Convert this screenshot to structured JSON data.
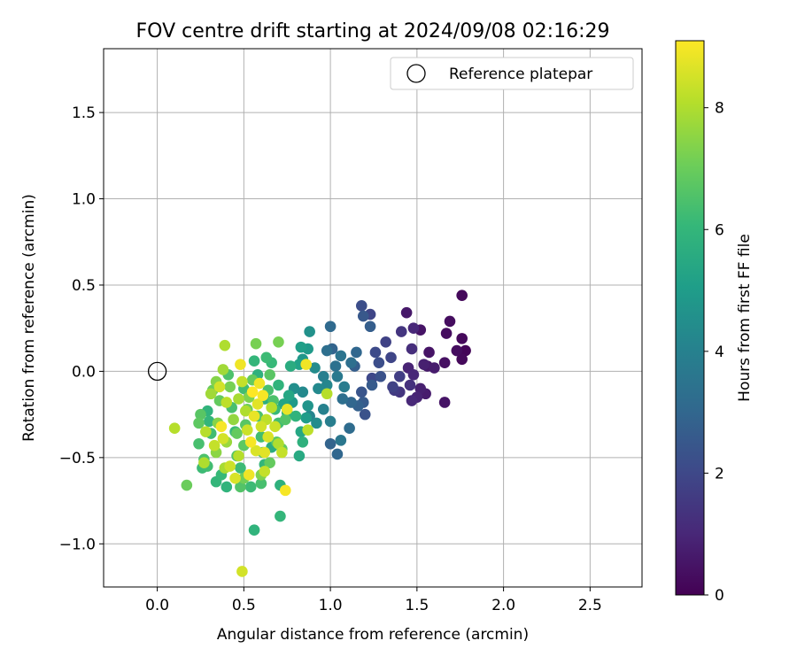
{
  "chart_data": {
    "type": "scatter",
    "title": "FOV centre drift starting at 2024/09/08 02:16:29",
    "xlabel": "Angular distance from reference (arcmin)",
    "ylabel": "Rotation from reference (arcmin)",
    "xlim": [
      -0.31,
      2.8
    ],
    "ylim": [
      -1.25,
      1.87
    ],
    "xticks": [
      0.0,
      0.5,
      1.0,
      1.5,
      2.0,
      2.5
    ],
    "xtick_labels": [
      "0.0",
      "0.5",
      "1.0",
      "1.5",
      "2.0",
      "2.5"
    ],
    "yticks": [
      -1.0,
      -0.5,
      0.0,
      0.5,
      1.0,
      1.5
    ],
    "ytick_labels": [
      "−1.0",
      "−0.5",
      "0.0",
      "0.5",
      "1.0",
      "1.5"
    ],
    "grid": true,
    "legend": {
      "placement": "top-right",
      "entries": [
        {
          "label": "Reference platepar",
          "marker": "open-circle"
        }
      ]
    },
    "reference_point": {
      "x": 0.0,
      "y": 0.0
    },
    "colorbar": {
      "label": "Hours from first FF file",
      "colormap": "viridis",
      "range": [
        0,
        9.1
      ],
      "ticks": [
        0,
        2,
        4,
        6,
        8
      ],
      "tick_labels": [
        "0",
        "2",
        "4",
        "6",
        "8"
      ]
    },
    "colormap_stops": [
      "#440154",
      "#482878",
      "#3e4989",
      "#31688e",
      "#26828e",
      "#1f9e89",
      "#35b779",
      "#6ece58",
      "#b5de2b",
      "#fde725"
    ],
    "points": [
      {
        "x": 1.76,
        "y": 0.44,
        "h": 0.2
      },
      {
        "x": 1.52,
        "y": 0.24,
        "h": 0.5
      },
      {
        "x": 1.69,
        "y": 0.29,
        "h": 0.3
      },
      {
        "x": 1.76,
        "y": 0.19,
        "h": 0.2
      },
      {
        "x": 1.78,
        "y": 0.12,
        "h": 0.1
      },
      {
        "x": 1.76,
        "y": 0.07,
        "h": 0.2
      },
      {
        "x": 1.73,
        "y": 0.12,
        "h": 0.3
      },
      {
        "x": 1.66,
        "y": 0.05,
        "h": 0.4
      },
      {
        "x": 1.66,
        "y": -0.18,
        "h": 0.5
      },
      {
        "x": 1.67,
        "y": 0.22,
        "h": 0.3
      },
      {
        "x": 1.56,
        "y": 0.03,
        "h": 0.6
      },
      {
        "x": 1.6,
        "y": 0.02,
        "h": 0.7
      },
      {
        "x": 1.57,
        "y": 0.11,
        "h": 0.5
      },
      {
        "x": 1.54,
        "y": 0.04,
        "h": 0.8
      },
      {
        "x": 1.48,
        "y": 0.25,
        "h": 1.0
      },
      {
        "x": 1.44,
        "y": 0.34,
        "h": 0.6
      },
      {
        "x": 1.41,
        "y": 0.23,
        "h": 1.4
      },
      {
        "x": 1.47,
        "y": 0.13,
        "h": 1.2
      },
      {
        "x": 1.45,
        "y": 0.02,
        "h": 0.9
      },
      {
        "x": 1.48,
        "y": -0.02,
        "h": 1.0
      },
      {
        "x": 1.46,
        "y": -0.08,
        "h": 1.3
      },
      {
        "x": 1.52,
        "y": -0.1,
        "h": 0.8
      },
      {
        "x": 1.55,
        "y": -0.13,
        "h": 0.7
      },
      {
        "x": 1.47,
        "y": -0.17,
        "h": 1.0
      },
      {
        "x": 1.5,
        "y": -0.15,
        "h": 0.9
      },
      {
        "x": 1.4,
        "y": -0.12,
        "h": 1.4
      },
      {
        "x": 1.37,
        "y": -0.11,
        "h": 1.6
      },
      {
        "x": 1.36,
        "y": -0.09,
        "h": 1.8
      },
      {
        "x": 1.4,
        "y": -0.03,
        "h": 1.7
      },
      {
        "x": 1.35,
        "y": 0.08,
        "h": 1.9
      },
      {
        "x": 1.32,
        "y": 0.17,
        "h": 1.8
      },
      {
        "x": 1.26,
        "y": 0.11,
        "h": 2.1
      },
      {
        "x": 1.23,
        "y": 0.33,
        "h": 1.9
      },
      {
        "x": 1.18,
        "y": 0.38,
        "h": 2.2
      },
      {
        "x": 1.19,
        "y": 0.32,
        "h": 2.5
      },
      {
        "x": 1.23,
        "y": 0.26,
        "h": 2.7
      },
      {
        "x": 1.28,
        "y": 0.05,
        "h": 2.2
      },
      {
        "x": 1.24,
        "y": -0.04,
        "h": 2.0
      },
      {
        "x": 1.29,
        "y": -0.03,
        "h": 2.3
      },
      {
        "x": 1.24,
        "y": -0.08,
        "h": 2.6
      },
      {
        "x": 1.18,
        "y": -0.12,
        "h": 2.4
      },
      {
        "x": 1.19,
        "y": -0.18,
        "h": 2.6
      },
      {
        "x": 1.2,
        "y": -0.25,
        "h": 2.3
      },
      {
        "x": 1.16,
        "y": -0.2,
        "h": 2.8
      },
      {
        "x": 1.12,
        "y": -0.18,
        "h": 3.0
      },
      {
        "x": 1.14,
        "y": 0.03,
        "h": 2.7
      },
      {
        "x": 1.15,
        "y": 0.11,
        "h": 3.0
      },
      {
        "x": 1.12,
        "y": 0.05,
        "h": 3.3
      },
      {
        "x": 1.0,
        "y": 0.26,
        "h": 3.1
      },
      {
        "x": 1.01,
        "y": 0.13,
        "h": 2.9
      },
      {
        "x": 0.98,
        "y": 0.12,
        "h": 3.3
      },
      {
        "x": 1.06,
        "y": 0.09,
        "h": 3.5
      },
      {
        "x": 1.03,
        "y": 0.03,
        "h": 3.4
      },
      {
        "x": 1.04,
        "y": -0.03,
        "h": 3.7
      },
      {
        "x": 1.07,
        "y": -0.16,
        "h": 3.3
      },
      {
        "x": 1.08,
        "y": -0.09,
        "h": 3.8
      },
      {
        "x": 1.11,
        "y": -0.33,
        "h": 3.2
      },
      {
        "x": 1.06,
        "y": -0.4,
        "h": 3.6
      },
      {
        "x": 1.0,
        "y": -0.42,
        "h": 2.9
      },
      {
        "x": 1.04,
        "y": -0.48,
        "h": 3.0
      },
      {
        "x": 1.0,
        "y": -0.29,
        "h": 3.9
      },
      {
        "x": 0.96,
        "y": -0.22,
        "h": 4.0
      },
      {
        "x": 0.98,
        "y": -0.08,
        "h": 4.2
      },
      {
        "x": 0.93,
        "y": -0.1,
        "h": 4.3
      },
      {
        "x": 0.96,
        "y": -0.03,
        "h": 3.9
      },
      {
        "x": 0.91,
        "y": 0.02,
        "h": 4.4
      },
      {
        "x": 0.88,
        "y": 0.23,
        "h": 4.6
      },
      {
        "x": 0.87,
        "y": 0.13,
        "h": 4.9
      },
      {
        "x": 0.83,
        "y": 0.14,
        "h": 5.1
      },
      {
        "x": 0.84,
        "y": 0.07,
        "h": 4.8
      },
      {
        "x": 0.82,
        "y": 0.04,
        "h": 5.2
      },
      {
        "x": 0.77,
        "y": 0.03,
        "h": 5.6
      },
      {
        "x": 0.79,
        "y": -0.1,
        "h": 4.5
      },
      {
        "x": 0.84,
        "y": -0.12,
        "h": 4.3
      },
      {
        "x": 0.87,
        "y": -0.2,
        "h": 4.7
      },
      {
        "x": 0.86,
        "y": -0.27,
        "h": 5.0
      },
      {
        "x": 0.83,
        "y": -0.35,
        "h": 5.4
      },
      {
        "x": 0.84,
        "y": -0.41,
        "h": 5.8
      },
      {
        "x": 0.82,
        "y": -0.49,
        "h": 5.5
      },
      {
        "x": 0.92,
        "y": -0.3,
        "h": 4.4
      },
      {
        "x": 0.88,
        "y": -0.26,
        "h": 4.1
      },
      {
        "x": 0.78,
        "y": -0.18,
        "h": 4.9
      },
      {
        "x": 0.73,
        "y": -0.19,
        "h": 5.3
      },
      {
        "x": 0.75,
        "y": -0.24,
        "h": 5.7
      },
      {
        "x": 0.7,
        "y": -0.08,
        "h": 5.9
      },
      {
        "x": 0.68,
        "y": -0.22,
        "h": 6.1
      },
      {
        "x": 0.7,
        "y": -0.3,
        "h": 6.3
      },
      {
        "x": 0.71,
        "y": -0.66,
        "h": 5.8
      },
      {
        "x": 0.71,
        "y": -0.84,
        "h": 6.0
      },
      {
        "x": 0.56,
        "y": -0.92,
        "h": 5.9
      },
      {
        "x": 0.54,
        "y": -0.67,
        "h": 6.2
      },
      {
        "x": 0.6,
        "y": -0.65,
        "h": 6.4
      },
      {
        "x": 0.48,
        "y": -0.67,
        "h": 6.6
      },
      {
        "x": 0.4,
        "y": -0.67,
        "h": 5.9
      },
      {
        "x": 0.34,
        "y": -0.64,
        "h": 6.0
      },
      {
        "x": 0.37,
        "y": -0.6,
        "h": 6.1
      },
      {
        "x": 0.29,
        "y": -0.55,
        "h": 6.3
      },
      {
        "x": 0.26,
        "y": -0.56,
        "h": 6.2
      },
      {
        "x": 0.27,
        "y": -0.51,
        "h": 6.5
      },
      {
        "x": 0.24,
        "y": -0.42,
        "h": 6.4
      },
      {
        "x": 0.24,
        "y": -0.3,
        "h": 6.8
      },
      {
        "x": 0.25,
        "y": -0.25,
        "h": 6.7
      },
      {
        "x": 0.17,
        "y": -0.66,
        "h": 7.0
      },
      {
        "x": 0.1,
        "y": -0.33,
        "h": 8.1
      },
      {
        "x": 0.29,
        "y": -0.23,
        "h": 5.9
      },
      {
        "x": 0.3,
        "y": -0.29,
        "h": 6.0
      },
      {
        "x": 0.31,
        "y": -0.36,
        "h": 6.3
      },
      {
        "x": 0.32,
        "y": -0.11,
        "h": 7.0
      },
      {
        "x": 0.34,
        "y": -0.06,
        "h": 7.4
      },
      {
        "x": 0.36,
        "y": -0.17,
        "h": 6.9
      },
      {
        "x": 0.38,
        "y": 0.01,
        "h": 7.8
      },
      {
        "x": 0.39,
        "y": 0.15,
        "h": 8.0
      },
      {
        "x": 0.41,
        "y": -0.02,
        "h": 6.5
      },
      {
        "x": 0.42,
        "y": -0.09,
        "h": 7.2
      },
      {
        "x": 0.43,
        "y": -0.21,
        "h": 6.4
      },
      {
        "x": 0.45,
        "y": -0.35,
        "h": 6.1
      },
      {
        "x": 0.46,
        "y": -0.49,
        "h": 6.6
      },
      {
        "x": 0.48,
        "y": -0.56,
        "h": 6.2
      },
      {
        "x": 0.5,
        "y": -0.43,
        "h": 6.8
      },
      {
        "x": 0.51,
        "y": -0.31,
        "h": 6.7
      },
      {
        "x": 0.52,
        "y": -0.22,
        "h": 7.1
      },
      {
        "x": 0.53,
        "y": -0.15,
        "h": 7.3
      },
      {
        "x": 0.55,
        "y": -0.05,
        "h": 6.9
      },
      {
        "x": 0.56,
        "y": 0.06,
        "h": 6.0
      },
      {
        "x": 0.57,
        "y": 0.16,
        "h": 7.2
      },
      {
        "x": 0.58,
        "y": -0.26,
        "h": 6.5
      },
      {
        "x": 0.6,
        "y": -0.38,
        "h": 6.3
      },
      {
        "x": 0.61,
        "y": -0.47,
        "h": 6.6
      },
      {
        "x": 0.62,
        "y": -0.54,
        "h": 6.0
      },
      {
        "x": 0.63,
        "y": 0.08,
        "h": 6.2
      },
      {
        "x": 0.64,
        "y": -0.11,
        "h": 6.4
      },
      {
        "x": 0.65,
        "y": -0.02,
        "h": 6.7
      },
      {
        "x": 0.66,
        "y": 0.05,
        "h": 6.1
      },
      {
        "x": 0.67,
        "y": -0.17,
        "h": 6.5
      },
      {
        "x": 0.69,
        "y": -0.41,
        "h": 6.8
      },
      {
        "x": 0.7,
        "y": 0.17,
        "h": 7.2
      },
      {
        "x": 0.72,
        "y": -0.45,
        "h": 6.9
      },
      {
        "x": 0.74,
        "y": -0.28,
        "h": 6.6
      },
      {
        "x": 0.5,
        "y": -0.62,
        "h": 7.1
      },
      {
        "x": 0.6,
        "y": -0.6,
        "h": 7.3
      },
      {
        "x": 0.34,
        "y": -0.47,
        "h": 7.5
      },
      {
        "x": 0.4,
        "y": -0.41,
        "h": 7.7
      },
      {
        "x": 0.44,
        "y": -0.28,
        "h": 7.6
      },
      {
        "x": 0.47,
        "y": -0.16,
        "h": 7.9
      },
      {
        "x": 0.35,
        "y": -0.3,
        "h": 7.4
      },
      {
        "x": 0.31,
        "y": -0.13,
        "h": 7.8
      },
      {
        "x": 0.28,
        "y": -0.35,
        "h": 8.1
      },
      {
        "x": 0.27,
        "y": -0.53,
        "h": 8.0
      },
      {
        "x": 0.33,
        "y": -0.43,
        "h": 8.3
      },
      {
        "x": 0.36,
        "y": -0.09,
        "h": 8.5
      },
      {
        "x": 0.4,
        "y": -0.18,
        "h": 8.2
      },
      {
        "x": 0.42,
        "y": -0.55,
        "h": 8.4
      },
      {
        "x": 0.45,
        "y": -0.62,
        "h": 8.6
      },
      {
        "x": 0.47,
        "y": -0.49,
        "h": 8.1
      },
      {
        "x": 0.49,
        "y": -0.06,
        "h": 8.3
      },
      {
        "x": 0.51,
        "y": -0.23,
        "h": 8.0
      },
      {
        "x": 0.52,
        "y": -0.34,
        "h": 8.4
      },
      {
        "x": 0.53,
        "y": -0.6,
        "h": 8.9
      },
      {
        "x": 0.54,
        "y": -0.41,
        "h": 9.0
      },
      {
        "x": 0.55,
        "y": -0.12,
        "h": 9.1
      },
      {
        "x": 0.56,
        "y": -0.26,
        "h": 8.8
      },
      {
        "x": 0.57,
        "y": -0.46,
        "h": 8.6
      },
      {
        "x": 0.58,
        "y": -0.19,
        "h": 8.7
      },
      {
        "x": 0.59,
        "y": -0.07,
        "h": 8.9
      },
      {
        "x": 0.6,
        "y": -0.32,
        "h": 8.5
      },
      {
        "x": 0.61,
        "y": -0.14,
        "h": 9.0
      },
      {
        "x": 0.62,
        "y": -0.58,
        "h": 8.3
      },
      {
        "x": 0.63,
        "y": -0.28,
        "h": 8.2
      },
      {
        "x": 0.64,
        "y": -0.38,
        "h": 8.6
      },
      {
        "x": 0.66,
        "y": -0.21,
        "h": 8.1
      },
      {
        "x": 0.68,
        "y": -0.32,
        "h": 8.4
      },
      {
        "x": 0.7,
        "y": -0.42,
        "h": 8.0
      },
      {
        "x": 0.72,
        "y": -0.47,
        "h": 8.3
      },
      {
        "x": 0.74,
        "y": -0.69,
        "h": 9.0
      },
      {
        "x": 0.75,
        "y": -0.22,
        "h": 8.8
      },
      {
        "x": 0.86,
        "y": 0.04,
        "h": 8.9
      },
      {
        "x": 0.87,
        "y": -0.34,
        "h": 8.2
      },
      {
        "x": 0.98,
        "y": -0.13,
        "h": 8.1
      },
      {
        "x": 0.48,
        "y": 0.04,
        "h": 8.9
      },
      {
        "x": 0.38,
        "y": -0.39,
        "h": 8.5
      },
      {
        "x": 0.37,
        "y": -0.32,
        "h": 9.0
      },
      {
        "x": 0.49,
        "y": -1.16,
        "h": 8.5
      },
      {
        "x": 0.62,
        "y": -0.47,
        "h": 8.7
      },
      {
        "x": 0.39,
        "y": -0.56,
        "h": 7.9
      },
      {
        "x": 0.46,
        "y": -0.36,
        "h": 6.9
      },
      {
        "x": 0.5,
        "y": -0.1,
        "h": 6.3
      },
      {
        "x": 0.58,
        "y": -0.02,
        "h": 5.8
      },
      {
        "x": 0.62,
        "y": -0.16,
        "h": 5.7
      },
      {
        "x": 0.66,
        "y": -0.44,
        "h": 5.6
      },
      {
        "x": 0.76,
        "y": -0.14,
        "h": 5.4
      },
      {
        "x": 0.8,
        "y": -0.26,
        "h": 5.9
      },
      {
        "x": 0.65,
        "y": -0.53,
        "h": 6.9
      }
    ]
  }
}
